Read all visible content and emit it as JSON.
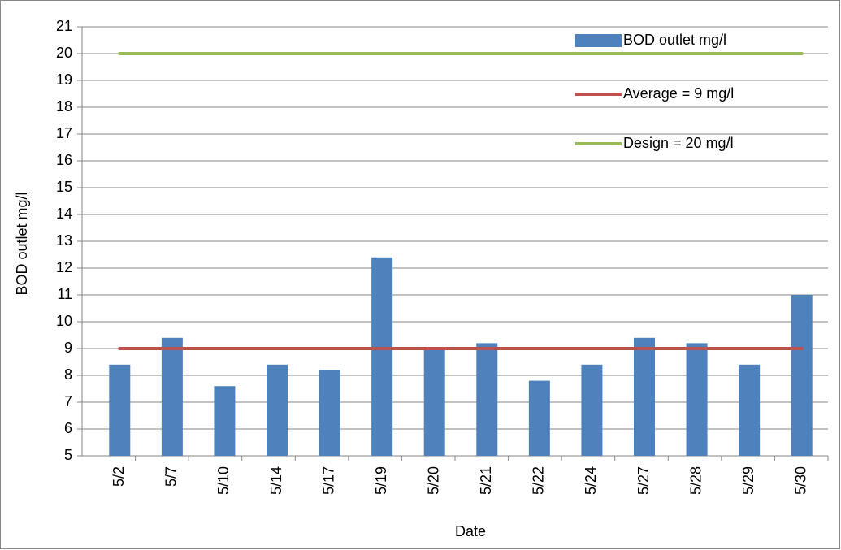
{
  "chart_data": {
    "type": "bar",
    "x_label": "Date",
    "y_label": "BOD outlet mg/l",
    "categories": [
      "5/2",
      "5/7",
      "5/10",
      "5/14",
      "5/17",
      "5/19",
      "5/20",
      "5/21",
      "5/22",
      "5/24",
      "5/27",
      "5/28",
      "5/29",
      "5/30"
    ],
    "series": [
      {
        "name": "BOD outlet mg/l",
        "type": "bar",
        "color": "#4f81bd",
        "values": [
          8.4,
          9.4,
          7.6,
          8.4,
          8.2,
          12.4,
          9.0,
          9.2,
          7.8,
          8.4,
          9.4,
          9.2,
          8.4,
          11.0
        ]
      },
      {
        "name": "Average = 9 mg/l",
        "type": "line",
        "color": "#c0504d",
        "values": [
          9,
          9,
          9,
          9,
          9,
          9,
          9,
          9,
          9,
          9,
          9,
          9,
          9,
          9
        ]
      },
      {
        "name": "Design = 20 mg/l",
        "type": "line",
        "color": "#9bbb59",
        "values": [
          20,
          20,
          20,
          20,
          20,
          20,
          20,
          20,
          20,
          20,
          20,
          20,
          20,
          20
        ]
      }
    ],
    "ylim": [
      5,
      21
    ],
    "yticks": [
      5,
      6,
      7,
      8,
      9,
      10,
      11,
      12,
      13,
      14,
      15,
      16,
      17,
      18,
      19,
      20,
      21
    ],
    "grid": true,
    "legend": "top-right"
  }
}
